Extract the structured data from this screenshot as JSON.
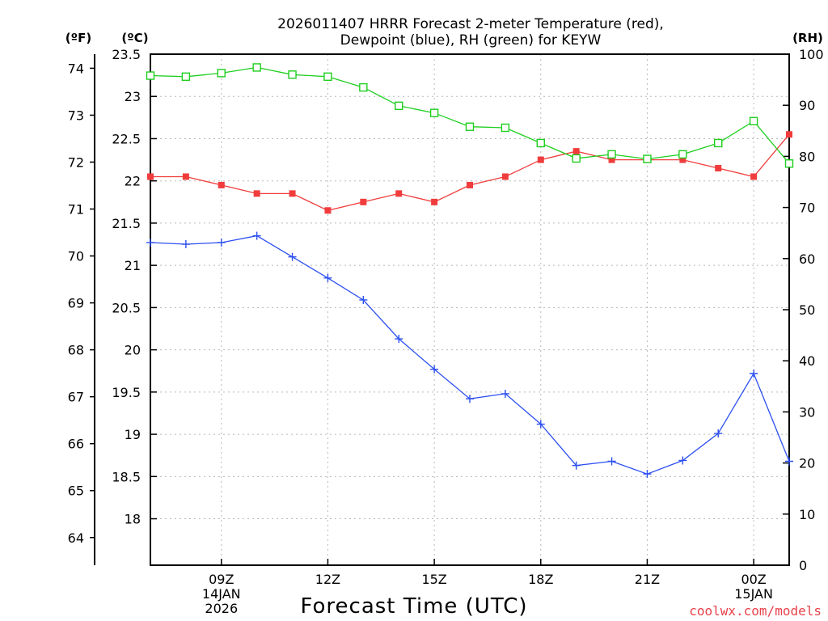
{
  "header": {
    "title_line1": "2026011407 HRRR Forecast 2-meter Temperature (red),",
    "title_line2": "Dewpoint (blue), RH (green) for KEYW"
  },
  "units": {
    "fahrenheit": "(ºF)",
    "celsius": "(ºC)",
    "rh": "(RH)"
  },
  "footer": {
    "credit": "coolwx.com/models"
  },
  "colors": {
    "temperature": "#f03c3c",
    "dewpoint": "#2c4ff0",
    "rh": "#1ecf1e"
  },
  "chart_data": {
    "type": "line",
    "xlabel": "Forecast Time (UTC)",
    "x_hours": [
      7,
      8,
      9,
      10,
      11,
      12,
      13,
      14,
      15,
      16,
      17,
      18,
      19,
      20,
      21,
      22,
      23,
      24,
      25
    ],
    "xlim": [
      7,
      25
    ],
    "x_ticks": [
      {
        "hour": 9,
        "lines": [
          "09Z",
          "14JAN",
          "2026"
        ]
      },
      {
        "hour": 12,
        "lines": [
          "12Z"
        ]
      },
      {
        "hour": 15,
        "lines": [
          "15Z"
        ]
      },
      {
        "hour": 18,
        "lines": [
          "18Z"
        ]
      },
      {
        "hour": 21,
        "lines": [
          "21Z"
        ]
      },
      {
        "hour": 24,
        "lines": [
          "00Z",
          "15JAN"
        ]
      }
    ],
    "celsius_axis": {
      "ylim": [
        17.45,
        23.5
      ],
      "ticks": [
        "23.5",
        "23",
        "22.5",
        "22",
        "21.5",
        "21",
        "20.5",
        "20",
        "19.5",
        "19",
        "18.5",
        "18"
      ]
    },
    "fahrenheit_axis": {
      "ticks": [
        "74",
        "73",
        "72",
        "71",
        "70",
        "69",
        "68",
        "67",
        "66",
        "65",
        "64"
      ]
    },
    "rh_axis": {
      "ylim": [
        0,
        100
      ],
      "ticks": [
        "100",
        "90",
        "80",
        "70",
        "60",
        "50",
        "40",
        "30",
        "20",
        "10",
        "0"
      ]
    },
    "series": [
      {
        "name": "Temperature",
        "unit": "C",
        "marker": "filled-square",
        "values": [
          22.05,
          22.05,
          21.95,
          21.85,
          21.85,
          21.65,
          21.75,
          21.85,
          21.75,
          21.95,
          22.05,
          22.25,
          22.35,
          22.25,
          22.25,
          22.25,
          22.15,
          22.05,
          22.55
        ]
      },
      {
        "name": "Dewpoint",
        "unit": "C",
        "marker": "plus",
        "values": [
          21.27,
          21.25,
          21.27,
          21.35,
          21.1,
          20.85,
          20.59,
          20.13,
          19.77,
          19.42,
          19.48,
          19.12,
          18.63,
          18.68,
          18.53,
          18.69,
          19.01,
          19.72,
          18.68
        ]
      },
      {
        "name": "RH",
        "unit": "%",
        "marker": "open-square",
        "values": [
          95.8,
          95.6,
          96.3,
          97.4,
          96.0,
          95.6,
          93.5,
          89.9,
          88.5,
          85.8,
          85.6,
          82.6,
          79.6,
          80.4,
          79.5,
          80.4,
          82.6,
          86.9,
          78.6
        ]
      }
    ]
  }
}
